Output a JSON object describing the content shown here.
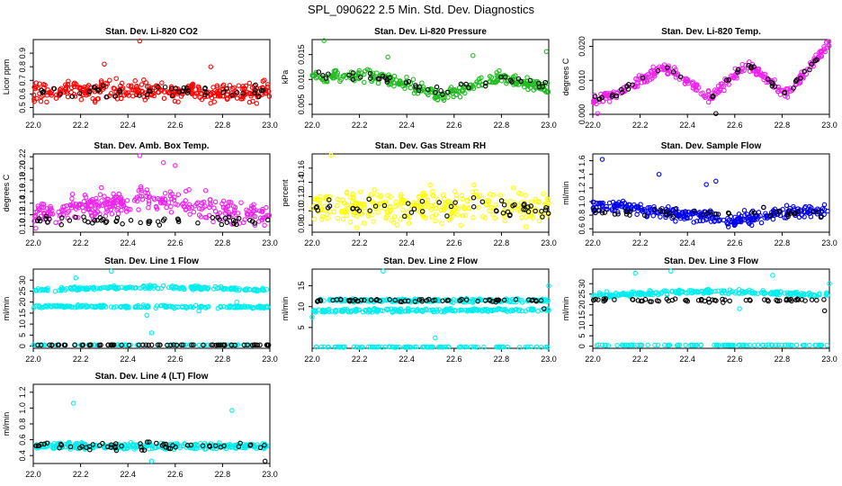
{
  "page": {
    "title": "SPL_090622  2.5 Min. Std. Dev. Diagnostics"
  },
  "colors": {
    "red": "#ff0000",
    "green": "#22bb22",
    "magenta": "#ee22ee",
    "yellow": "#ffff00",
    "blue": "#0000ee",
    "cyan": "#00eeee",
    "black": "#000000"
  },
  "chart_data": [
    {
      "type": "scatter",
      "title": "Stan. Dev. Li-820 CO2",
      "ylabel": "Licor ppm",
      "xlabel": "",
      "xlim": [
        22.0,
        23.0
      ],
      "xticks": [
        "22.0",
        "22.2",
        "22.4",
        "22.6",
        "22.8",
        "23.0"
      ],
      "ylim": [
        0.45,
        1.0
      ],
      "yticks": [
        "0.5",
        "0.6",
        "0.7",
        "0.8",
        "0.9"
      ],
      "grid": false,
      "legend": "none",
      "series": [
        {
          "color": "red",
          "bands": [
            {
              "x": [
                22.0,
                23.0
              ],
              "y": [
                0.62,
                0.62
              ],
              "spread": 0.07,
              "count": 320
            }
          ],
          "outliers": [
            [
              22.45,
              0.99
            ],
            [
              22.98,
              0.44
            ],
            [
              22.3,
              0.82
            ],
            [
              22.75,
              0.8
            ]
          ]
        },
        {
          "color": "black",
          "bands": [
            {
              "x": [
                22.0,
                23.0
              ],
              "y": [
                0.62,
                0.62
              ],
              "spread": 0.05,
              "count": 50
            }
          ],
          "outliers": []
        }
      ]
    },
    {
      "type": "scatter",
      "title": "Stan. Dev. Li-820 Pressure",
      "ylabel": "kPa",
      "xlabel": "",
      "xlim": [
        22.0,
        23.0
      ],
      "xticks": [
        "22.0",
        "22.2",
        "22.4",
        "22.6",
        "22.8",
        "23.0"
      ],
      "ylim": [
        0.003,
        0.018
      ],
      "yticks": [
        "0.005",
        "0.010",
        "0.015"
      ],
      "grid": false,
      "legend": "none",
      "series": [
        {
          "color": "green",
          "bands": [
            {
              "x": [
                22.0,
                22.3,
                22.55,
                22.8,
                23.0
              ],
              "y": [
                0.0105,
                0.0105,
                0.0066,
                0.0105,
                0.0082
              ],
              "spread": 0.0012,
              "count": 300
            }
          ],
          "outliers": [
            [
              22.05,
              0.0178
            ],
            [
              22.68,
              0.0148
            ],
            [
              22.32,
              0.0145
            ],
            [
              22.99,
              0.0156
            ]
          ]
        },
        {
          "color": "black",
          "bands": [
            {
              "x": [
                22.0,
                22.3,
                22.55,
                22.8,
                23.0
              ],
              "y": [
                0.0105,
                0.0105,
                0.0072,
                0.0105,
                0.0085
              ],
              "spread": 0.0008,
              "count": 45
            }
          ],
          "outliers": []
        }
      ]
    },
    {
      "type": "scatter",
      "title": "Stan. Dev. Li-820 Temp.",
      "ylabel": "degrees C",
      "xlabel": "",
      "xlim": [
        22.0,
        23.0
      ],
      "xticks": [
        "22.0",
        "22.2",
        "22.4",
        "22.6",
        "22.8",
        "23.0"
      ],
      "ylim": [
        0.0,
        0.022
      ],
      "yticks": [
        "0.000",
        "0.010",
        "0.020"
      ],
      "grid": false,
      "legend": "none",
      "series": [
        {
          "color": "magenta",
          "bands": [
            {
              "x": [
                22.0,
                22.1,
                22.3,
                22.5,
                22.65,
                22.82,
                23.0
              ],
              "y": [
                0.004,
                0.006,
                0.014,
                0.005,
                0.015,
                0.006,
                0.021
              ],
              "spread": 0.0016,
              "count": 300
            }
          ],
          "outliers": [
            [
              22.02,
              0.0002
            ]
          ]
        },
        {
          "color": "black",
          "bands": [
            {
              "x": [
                22.0,
                22.1,
                22.3,
                22.5,
                22.65,
                22.82,
                23.0
              ],
              "y": [
                0.004,
                0.006,
                0.014,
                0.005,
                0.015,
                0.006,
                0.021
              ],
              "spread": 0.0009,
              "count": 45
            }
          ],
          "outliers": [
            [
              22.52,
              0.0002
            ]
          ]
        }
      ]
    },
    {
      "type": "scatter",
      "title": "Stan. Dev. Amb. Box Temp.",
      "ylabel": "degrees C",
      "xlabel": "",
      "xlim": [
        22.0,
        23.0
      ],
      "xticks": [
        "22.0",
        "22.2",
        "22.4",
        "22.6",
        "22.8",
        "23.0"
      ],
      "ylim": [
        0.09,
        0.225
      ],
      "yticks": [
        "0.10",
        "0.12",
        "0.14",
        "0.16",
        "0.18",
        "0.20",
        "0.22"
      ],
      "grid": false,
      "legend": "none",
      "series": [
        {
          "color": "magenta",
          "bands": [
            {
              "x": [
                22.0,
                22.5,
                23.0
              ],
              "y": [
                0.12,
                0.15,
                0.115
              ],
              "spread": 0.02,
              "count": 320
            }
          ],
          "outliers": [
            [
              22.45,
              0.222
            ],
            [
              22.55,
              0.21
            ],
            [
              22.6,
              0.205
            ]
          ]
        },
        {
          "color": "black",
          "bands": [
            {
              "x": [
                22.0,
                23.0
              ],
              "y": [
                0.11,
                0.11
              ],
              "spread": 0.008,
              "count": 55
            }
          ],
          "outliers": []
        }
      ]
    },
    {
      "type": "scatter",
      "title": "Stan. Dev. Gas Stream RH",
      "ylabel": "percent",
      "xlabel": "",
      "xlim": [
        22.0,
        23.0
      ],
      "xticks": [
        "22.0",
        "22.2",
        "22.4",
        "22.6",
        "22.8",
        "23.0"
      ],
      "ylim": [
        0.07,
        0.18
      ],
      "yticks": [
        "0.08",
        "0.10",
        "0.12",
        "0.14",
        "0.16"
      ],
      "grid": false,
      "legend": "none",
      "series": [
        {
          "color": "yellow",
          "bands": [
            {
              "x": [
                22.0,
                23.0
              ],
              "y": [
                0.105,
                0.105
              ],
              "spread": 0.022,
              "count": 320
            }
          ],
          "outliers": [
            [
              22.08,
              0.178
            ]
          ]
        },
        {
          "color": "black",
          "bands": [
            {
              "x": [
                22.0,
                23.0
              ],
              "y": [
                0.105,
                0.105
              ],
              "spread": 0.016,
              "count": 50
            }
          ],
          "outliers": []
        }
      ]
    },
    {
      "type": "scatter",
      "title": "Stan. Dev. Sample Flow",
      "ylabel": "ml/min",
      "xlabel": "",
      "xlim": [
        22.0,
        23.0
      ],
      "xticks": [
        "22.0",
        "22.2",
        "22.4",
        "22.6",
        "22.8",
        "23.0"
      ],
      "ylim": [
        0.55,
        1.7
      ],
      "yticks": [
        "0.6",
        "0.8",
        "1.0",
        "1.2",
        "1.4",
        "1.6"
      ],
      "grid": false,
      "legend": "none",
      "series": [
        {
          "color": "blue",
          "bands": [
            {
              "x": [
                22.0,
                22.3,
                22.6,
                22.8,
                23.0
              ],
              "y": [
                0.95,
                0.85,
                0.72,
                0.85,
                0.85
              ],
              "spread": 0.09,
              "count": 320
            }
          ],
          "outliers": [
            [
              22.04,
              1.62
            ],
            [
              22.28,
              1.4
            ],
            [
              22.52,
              1.3
            ],
            [
              22.48,
              1.25
            ]
          ]
        },
        {
          "color": "black",
          "bands": [
            {
              "x": [
                22.0,
                23.0
              ],
              "y": [
                0.85,
                0.82
              ],
              "spread": 0.06,
              "count": 45
            }
          ],
          "outliers": []
        }
      ]
    },
    {
      "type": "scatter",
      "title": "Stan. Dev. Line 1 Flow",
      "ylabel": "ml/min",
      "xlabel": "",
      "xlim": [
        22.0,
        23.0
      ],
      "xticks": [
        "22.0",
        "22.2",
        "22.4",
        "22.6",
        "22.8",
        "23.0"
      ],
      "ylim": [
        -1,
        35
      ],
      "yticks": [
        "0",
        "5",
        "10",
        "15",
        "20",
        "25",
        "30"
      ],
      "grid": false,
      "legend": "none",
      "series": [
        {
          "color": "cyan",
          "bands": [
            {
              "x": [
                22.0,
                22.5,
                23.0
              ],
              "y": [
                25.5,
                27,
                25.5
              ],
              "spread": 0.8,
              "count": 200
            },
            {
              "x": [
                22.0,
                23.0
              ],
              "y": [
                18,
                17.8
              ],
              "spread": 0.6,
              "count": 200
            },
            {
              "x": [
                22.0,
                23.0
              ],
              "y": [
                0.5,
                0.5
              ],
              "spread": 0.1,
              "count": 80
            }
          ],
          "outliers": [
            [
              22.5,
              6
            ],
            [
              22.48,
              14
            ],
            [
              22.18,
              31
            ],
            [
              22.33,
              34
            ],
            [
              22.7,
              16
            ],
            [
              22.86,
              20
            ]
          ]
        },
        {
          "color": "black",
          "bands": [
            {
              "x": [
                22.0,
                23.0
              ],
              "y": [
                0.5,
                0.5
              ],
              "spread": 0.1,
              "count": 70
            }
          ],
          "outliers": []
        }
      ]
    },
    {
      "type": "scatter",
      "title": "Stan. Dev. Line 2 Flow",
      "ylabel": "ml/min",
      "xlabel": "",
      "xlim": [
        22.0,
        23.0
      ],
      "xticks": [
        "22.0",
        "22.2",
        "22.4",
        "22.6",
        "22.8",
        "23.0"
      ],
      "ylim": [
        0,
        19
      ],
      "yticks": [
        "5",
        "10",
        "15"
      ],
      "grid": false,
      "legend": "none",
      "series": [
        {
          "color": "cyan",
          "bands": [
            {
              "x": [
                22.0,
                23.0
              ],
              "y": [
                11.5,
                11.5
              ],
              "spread": 0.4,
              "count": 200
            },
            {
              "x": [
                22.0,
                23.0
              ],
              "y": [
                9,
                9.2
              ],
              "spread": 0.4,
              "count": 200
            },
            {
              "x": [
                22.0,
                23.0
              ],
              "y": [
                0.3,
                0.3
              ],
              "spread": 0.1,
              "count": 100
            }
          ],
          "outliers": [
            [
              22.52,
              2.5
            ],
            [
              22.3,
              18.5
            ],
            [
              22.0,
              7.5
            ],
            [
              23.0,
              15
            ]
          ]
        },
        {
          "color": "black",
          "bands": [
            {
              "x": [
                22.0,
                23.0
              ],
              "y": [
                11.5,
                11.5
              ],
              "spread": 0.4,
              "count": 60
            }
          ],
          "outliers": [
            [
              22.98,
              9.5
            ]
          ]
        }
      ]
    },
    {
      "type": "scatter",
      "title": "Stan. Dev. Line 3 Flow",
      "ylabel": "ml/min",
      "xlabel": "",
      "xlim": [
        22.0,
        23.0
      ],
      "xticks": [
        "22.0",
        "22.2",
        "22.4",
        "22.6",
        "22.8",
        "23.0"
      ],
      "ylim": [
        -1,
        37
      ],
      "yticks": [
        "0",
        "5",
        "10",
        "15",
        "20",
        "25",
        "30"
      ],
      "grid": false,
      "legend": "none",
      "series": [
        {
          "color": "cyan",
          "bands": [
            {
              "x": [
                22.0,
                22.5,
                23.0
              ],
              "y": [
                24.5,
                26.5,
                24.5
              ],
              "spread": 1.0,
              "count": 220
            },
            {
              "x": [
                22.0,
                23.0
              ],
              "y": [
                0.5,
                0.5
              ],
              "spread": 0.15,
              "count": 100
            }
          ],
          "outliers": [
            [
              22.18,
              35
            ],
            [
              22.33,
              36
            ],
            [
              22.62,
              18
            ],
            [
              22.76,
              34
            ],
            [
              23.0,
              30
            ]
          ]
        },
        {
          "color": "black",
          "bands": [
            {
              "x": [
                22.0,
                23.0
              ],
              "y": [
                22,
                22
              ],
              "spread": 0.8,
              "count": 60
            }
          ],
          "outliers": [
            [
              22.98,
              17
            ]
          ]
        }
      ]
    },
    {
      "type": "scatter",
      "title": "Stan. Dev. Line 4 (LT) Flow",
      "ylabel": "ml/min",
      "xlabel": "",
      "xlim": [
        22.0,
        23.0
      ],
      "xticks": [
        "22.0",
        "22.2",
        "22.4",
        "22.6",
        "22.8",
        "23.0"
      ],
      "ylim": [
        0.3,
        1.3
      ],
      "yticks": [
        "0.4",
        "0.6",
        "0.8",
        "1.0",
        "1.2"
      ],
      "grid": false,
      "legend": "none",
      "series": [
        {
          "color": "cyan",
          "bands": [
            {
              "x": [
                22.0,
                23.0
              ],
              "y": [
                0.52,
                0.52
              ],
              "spread": 0.04,
              "count": 300
            }
          ],
          "outliers": [
            [
              22.17,
              1.06
            ],
            [
              22.84,
              0.97
            ],
            [
              22.5,
              0.33
            ]
          ]
        },
        {
          "color": "black",
          "bands": [
            {
              "x": [
                22.0,
                23.0
              ],
              "y": [
                0.52,
                0.52
              ],
              "spread": 0.045,
              "count": 55
            }
          ],
          "outliers": [
            [
              22.98,
              0.33
            ]
          ]
        }
      ]
    }
  ]
}
